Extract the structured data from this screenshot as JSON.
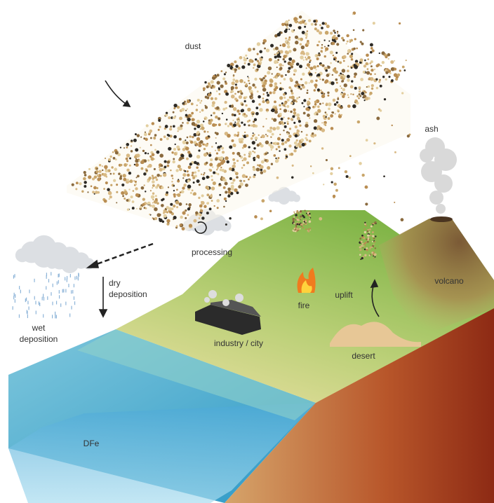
{
  "labels": [
    {
      "lines": [
        "dust"
      ]
    },
    {
      "lines": [
        "ash"
      ]
    },
    {
      "lines": [
        "processing"
      ]
    },
    {
      "lines": [
        "dry",
        "deposition"
      ]
    },
    {
      "lines": [
        "wet",
        "deposition"
      ]
    },
    {
      "lines": [
        "fire"
      ]
    },
    {
      "lines": [
        "uplift"
      ]
    },
    {
      "lines": [
        "volcano"
      ]
    },
    {
      "lines": [
        "industry / city"
      ]
    },
    {
      "lines": [
        "desert"
      ]
    },
    {
      "lines": [
        "DFe"
      ]
    }
  ]
}
